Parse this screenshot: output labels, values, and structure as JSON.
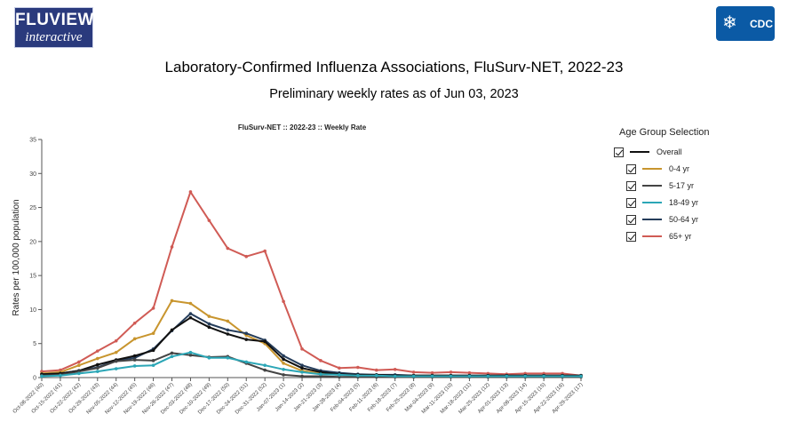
{
  "header": {
    "fluview_logo_line1": "FLUVIEW",
    "fluview_logo_line2": "interactive",
    "cdc_logo_text": "CDC",
    "title": "Laboratory-Confirmed Influenza Associations, FluSurv-NET, 2022-23",
    "subtitle": "Preliminary weekly rates as of Jun 03, 2023"
  },
  "legend": {
    "title": "Age Group Selection",
    "items": [
      {
        "label": "Overall",
        "color": "#111111",
        "checked": true
      },
      {
        "label": "0-4 yr",
        "color": "#c8952e",
        "checked": true
      },
      {
        "label": "5-17 yr",
        "color": "#444444",
        "checked": true
      },
      {
        "label": "18-49 yr",
        "color": "#2ba6b6",
        "checked": true
      },
      {
        "label": "50-64 yr",
        "color": "#253d5b",
        "checked": true
      },
      {
        "label": "65+ yr",
        "color": "#d05b55",
        "checked": true
      }
    ]
  },
  "chart_data": {
    "type": "line",
    "title": "FluSurv-NET :: 2022-23 :: Weekly Rate",
    "xlabel": "",
    "ylabel": "Rates per 100,000 population",
    "ylim": [
      0,
      35
    ],
    "yticks": [
      0,
      5,
      10,
      15,
      20,
      25,
      30,
      35
    ],
    "grid": false,
    "legend_position": "right",
    "categories": [
      "Oct-08-2022 (40)",
      "Oct-15-2022 (41)",
      "Oct-22-2022 (42)",
      "Oct-29-2022 (43)",
      "Nov-05-2022 (44)",
      "Nov-12-2022 (45)",
      "Nov-19-2022 (46)",
      "Nov-26-2022 (47)",
      "Dec-03-2022 (48)",
      "Dec-10-2022 (49)",
      "Dec-17-2022 (50)",
      "Dec-24-2022 (51)",
      "Dec-31-2022 (52)",
      "Jan-07-2023 (1)",
      "Jan-14-2023 (2)",
      "Jan-21-2023 (3)",
      "Jan-28-2023 (4)",
      "Feb-04-2023 (5)",
      "Feb-11-2023 (6)",
      "Feb-18-2023 (7)",
      "Feb-25-2023 (8)",
      "Mar-04-2023 (9)",
      "Mar-11-2023 (10)",
      "Mar-18-2023 (11)",
      "Mar-25-2023 (12)",
      "Apr-01-2023 (13)",
      "Apr-08-2023 (14)",
      "Apr-15-2023 (15)",
      "Apr-22-2023 (16)",
      "Apr-29-2023 (17)"
    ],
    "series": [
      {
        "name": "65+ yr",
        "color": "#d05b55",
        "values": [
          0.9,
          1.1,
          2.3,
          3.9,
          5.4,
          8.0,
          10.2,
          19.2,
          27.3,
          23.1,
          19.0,
          17.8,
          18.6,
          11.2,
          4.2,
          2.5,
          1.4,
          1.5,
          1.1,
          1.2,
          0.8,
          0.7,
          0.8,
          0.7,
          0.6,
          0.5,
          0.6,
          0.6,
          0.6,
          0.3
        ]
      },
      {
        "name": "0-4 yr",
        "color": "#c8952e",
        "values": [
          0.6,
          0.8,
          1.8,
          2.8,
          3.7,
          5.7,
          6.5,
          11.3,
          10.9,
          9.0,
          8.3,
          6.2,
          5.0,
          2.1,
          1.0,
          0.6,
          0.4,
          0.3,
          0.3,
          0.3,
          0.3,
          0.3,
          0.3,
          0.2,
          0.2,
          0.2,
          0.2,
          0.2,
          0.2,
          0.2
        ]
      },
      {
        "name": "50-64 yr",
        "color": "#253d5b",
        "values": [
          0.5,
          0.6,
          1.0,
          1.5,
          2.5,
          2.9,
          4.2,
          6.9,
          9.4,
          7.9,
          7.0,
          6.5,
          5.5,
          3.2,
          1.8,
          1.0,
          0.7,
          0.5,
          0.4,
          0.4,
          0.3,
          0.3,
          0.3,
          0.3,
          0.3,
          0.3,
          0.3,
          0.3,
          0.3,
          0.3
        ]
      },
      {
        "name": "Overall",
        "color": "#111111",
        "values": [
          0.5,
          0.6,
          1.0,
          1.9,
          2.6,
          3.2,
          4.0,
          7.0,
          8.8,
          7.4,
          6.4,
          5.6,
          5.3,
          2.7,
          1.4,
          0.8,
          0.5,
          0.4,
          0.4,
          0.3,
          0.3,
          0.3,
          0.3,
          0.3,
          0.3,
          0.3,
          0.3,
          0.3,
          0.3,
          0.3
        ]
      },
      {
        "name": "5-17 yr",
        "color": "#444444",
        "values": [
          0.3,
          0.4,
          0.9,
          1.4,
          2.4,
          2.6,
          2.5,
          3.6,
          3.3,
          3.0,
          3.1,
          2.1,
          1.1,
          0.4,
          0.2,
          0.2,
          0.1,
          0.1,
          0.1,
          0.1,
          0.1,
          0.1,
          0.1,
          0.1,
          0.1,
          0.1,
          0.1,
          0.1,
          0.1,
          0.1
        ]
      },
      {
        "name": "18-49 yr",
        "color": "#2ba6b6",
        "values": [
          0.2,
          0.3,
          0.6,
          0.9,
          1.3,
          1.7,
          1.8,
          3.1,
          3.7,
          2.9,
          2.9,
          2.3,
          1.8,
          1.2,
          0.8,
          0.5,
          0.4,
          0.3,
          0.3,
          0.2,
          0.2,
          0.2,
          0.2,
          0.2,
          0.2,
          0.2,
          0.2,
          0.2,
          0.2,
          0.2
        ]
      }
    ]
  }
}
